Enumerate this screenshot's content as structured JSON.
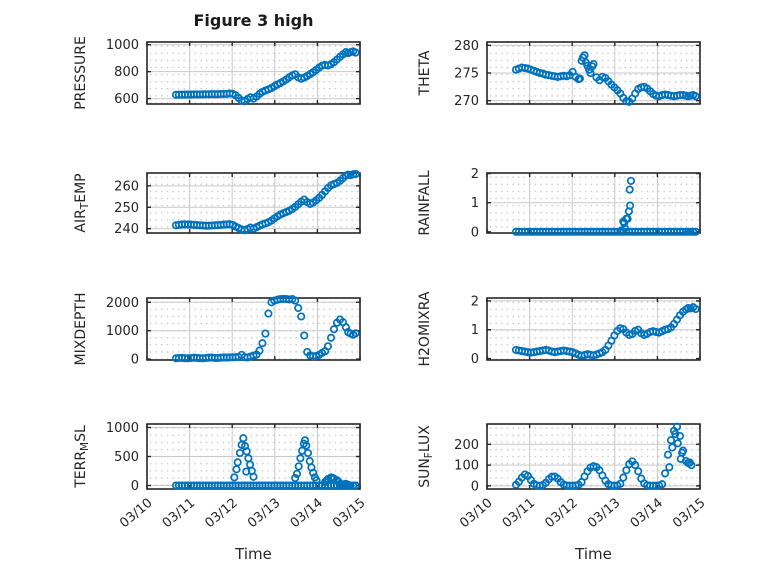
{
  "figure": {
    "title": "Figure 3 high"
  },
  "x_axis": {
    "label": "Time",
    "tick_labels": [
      "03/10",
      "03/11",
      "03/12",
      "03/13",
      "03/14",
      "03/15"
    ],
    "range_days": [
      0,
      5
    ],
    "sample_days": [
      0.68,
      0.75,
      0.82,
      0.89,
      0.96,
      1.03,
      1.1,
      1.17,
      1.24,
      1.31,
      1.38,
      1.45,
      1.52,
      1.59,
      1.66,
      1.73,
      1.8,
      1.87,
      1.94,
      2.01,
      2.08,
      2.15,
      2.22,
      2.29,
      2.36,
      2.43,
      2.5,
      2.57,
      2.64,
      2.71,
      2.78,
      2.85,
      2.92,
      2.99,
      3.06,
      3.13,
      3.2,
      3.27,
      3.34,
      3.41,
      3.48,
      3.55,
      3.62,
      3.69,
      3.76,
      3.83,
      3.9,
      3.97,
      4.04,
      4.11,
      4.18,
      4.25,
      4.32,
      4.39,
      4.46,
      4.53,
      4.6,
      4.67,
      4.72
    ]
  },
  "style": {
    "marker_color": "#0072BD",
    "grid_color": "#c9c9c9",
    "minor_dot_color": "#c5c5c5",
    "axis_color": "#262626",
    "text_color": "#262626"
  },
  "chart_data": [
    {
      "id": "pressure",
      "type": "scatter",
      "ylabel": "PRESSURE",
      "ylabel_parts": [
        {
          "text": "PRESSURE",
          "sub": false
        }
      ],
      "yticks": [
        600,
        800,
        1000
      ],
      "ylim": [
        560,
        1020
      ],
      "y": [
        628,
        629,
        629,
        630,
        630,
        630,
        631,
        631,
        631,
        632,
        632,
        632,
        633,
        633,
        633,
        634,
        634,
        635,
        638,
        636,
        625,
        605,
        585,
        580,
        596,
        610,
        600,
        615,
        635,
        650,
        660,
        668,
        678,
        692,
        705,
        715,
        728,
        742,
        758,
        772,
        780,
        758,
        748,
        756,
        768,
        782,
        795,
        812,
        830,
        845,
        850,
        846,
        855,
        870,
        890,
        910,
        928,
        945,
        938
      ],
      "x_extra": [
        4.78,
        4.84,
        4.9
      ],
      "y_extra": [
        944,
        950,
        941
      ]
    },
    {
      "id": "theta",
      "type": "scatter",
      "ylabel": "THETA",
      "ylabel_parts": [
        {
          "text": "THETA",
          "sub": false
        }
      ],
      "yticks": [
        270,
        275,
        280
      ],
      "ylim": [
        269.4,
        280.6
      ],
      "y": [
        275.6,
        275.8,
        276.0,
        275.9,
        275.8,
        275.6,
        275.4,
        275.2,
        275.0,
        274.9,
        274.7,
        274.6,
        274.5,
        274.4,
        274.3,
        274.4,
        274.5,
        274.4,
        274.6,
        275.2,
        274.3,
        273.9,
        277.2,
        278.2,
        276.3,
        275.0,
        276.6,
        274.2,
        273.7,
        274.3,
        274.1,
        273.5,
        272.9,
        272.4,
        271.9,
        271.3,
        270.5,
        269.9,
        269.8,
        270.4,
        271.3,
        272.1,
        272.4,
        272.5,
        272.2,
        271.7,
        271.2,
        270.9,
        270.8,
        271.0,
        271.1,
        271.0,
        270.9,
        270.8,
        270.9,
        271.0,
        271.0,
        270.9,
        270.8
      ],
      "x_extra": [
        2.18,
        2.25,
        2.32,
        2.4,
        2.47,
        4.78,
        4.84,
        4.9
      ],
      "y_extra": [
        274.0,
        277.8,
        276.9,
        275.6,
        276.2,
        270.9,
        271.0,
        270.8
      ]
    },
    {
      "id": "air_temp",
      "type": "scatter",
      "ylabel": "AIR_TEMP",
      "ylabel_parts": [
        {
          "text": "AIR",
          "sub": false
        },
        {
          "text": "T",
          "sub": true
        },
        {
          "text": "EMP",
          "sub": false
        }
      ],
      "yticks": [
        240,
        250,
        260
      ],
      "ylim": [
        238,
        266
      ],
      "y": [
        241.6,
        241.8,
        242.0,
        242.0,
        242.0,
        241.9,
        241.8,
        241.7,
        241.6,
        241.5,
        241.4,
        241.4,
        241.5,
        241.6,
        241.7,
        241.8,
        241.9,
        242.0,
        242.1,
        241.8,
        241.0,
        240.3,
        239.7,
        239.3,
        239.8,
        240.5,
        240.0,
        240.7,
        241.4,
        242.0,
        242.5,
        243.0,
        243.8,
        244.8,
        245.8,
        246.6,
        247.2,
        247.8,
        248.4,
        249.2,
        250.2,
        251.4,
        252.6,
        253.6,
        252.4,
        251.6,
        252.2,
        253.2,
        254.4,
        255.8,
        257.4,
        259.0,
        260.2,
        260.8,
        261.4,
        262.4,
        263.6,
        264.8,
        265.2
      ],
      "x_extra": [
        4.78,
        4.84,
        4.9
      ],
      "y_extra": [
        265.0,
        265.4,
        265.6
      ]
    },
    {
      "id": "rainfall",
      "type": "scatter",
      "ylabel": "RAINFALL",
      "ylabel_parts": [
        {
          "text": "RAINFALL",
          "sub": false
        }
      ],
      "yticks": [
        0,
        1,
        2
      ],
      "ylim": [
        -0.04,
        2.02
      ],
      "y": [
        0,
        0,
        0,
        0,
        0,
        0,
        0,
        0,
        0,
        0,
        0,
        0,
        0,
        0,
        0,
        0,
        0,
        0,
        0,
        0,
        0,
        0,
        0,
        0,
        0,
        0,
        0,
        0,
        0,
        0,
        0,
        0,
        0,
        0,
        0,
        0,
        0,
        0,
        0,
        0,
        0,
        0,
        0,
        0,
        0,
        0,
        0,
        0,
        0,
        0,
        0,
        0,
        0,
        0,
        0,
        0,
        0,
        0,
        0
      ],
      "x_extra": [
        3.16,
        3.2,
        3.22,
        3.24,
        3.27,
        3.3,
        3.33,
        3.35,
        3.36,
        3.38,
        4.78,
        4.84,
        4.9
      ],
      "y_extra": [
        0.05,
        0.35,
        0.3,
        0.12,
        0.45,
        0.45,
        0.7,
        1.45,
        0.9,
        1.75,
        0,
        0,
        0
      ]
    },
    {
      "id": "mixdepth",
      "type": "scatter",
      "ylabel": "MIXDEPTH",
      "ylabel_parts": [
        {
          "text": "MIXDEPTH",
          "sub": false
        }
      ],
      "yticks": [
        0,
        1000,
        2000
      ],
      "ylim": [
        -30,
        2150
      ],
      "y": [
        30,
        40,
        45,
        35,
        30,
        40,
        50,
        45,
        35,
        30,
        40,
        50,
        55,
        45,
        40,
        50,
        60,
        55,
        60,
        65,
        70,
        75,
        150,
        70,
        60,
        90,
        120,
        160,
        300,
        560,
        900,
        1600,
        2000,
        2060,
        2090,
        2110,
        2120,
        2110,
        2100,
        2110,
        2060,
        1800,
        1500,
        830,
        250,
        130,
        100,
        110,
        150,
        220,
        280,
        450,
        750,
        1050,
        1280,
        1390,
        1300,
        1120,
        950
      ],
      "x_extra": [
        4.78,
        4.84,
        4.9
      ],
      "y_extra": [
        900,
        860,
        910
      ]
    },
    {
      "id": "h2omixra",
      "type": "scatter",
      "ylabel": "H2OMIXRA",
      "ylabel_parts": [
        {
          "text": "H2OMIXRA",
          "sub": false
        }
      ],
      "yticks": [
        0,
        1,
        2
      ],
      "ylim": [
        -0.05,
        2.1
      ],
      "y": [
        0.3,
        0.28,
        0.26,
        0.24,
        0.22,
        0.21,
        0.22,
        0.24,
        0.26,
        0.28,
        0.3,
        0.28,
        0.24,
        0.22,
        0.24,
        0.26,
        0.28,
        0.26,
        0.24,
        0.22,
        0.18,
        0.13,
        0.1,
        0.12,
        0.15,
        0.13,
        0.11,
        0.14,
        0.18,
        0.22,
        0.3,
        0.45,
        0.62,
        0.8,
        0.96,
        1.05,
        1.02,
        0.9,
        0.82,
        0.85,
        0.96,
        1.0,
        0.88,
        0.82,
        0.86,
        0.92,
        0.95,
        0.92,
        0.9,
        0.95,
        1.0,
        1.02,
        1.08,
        1.2,
        1.35,
        1.5,
        1.62,
        1.7,
        1.75
      ],
      "x_extra": [
        4.78,
        4.84,
        4.9
      ],
      "y_extra": [
        1.74,
        1.78,
        1.72
      ]
    },
    {
      "id": "terr_msl",
      "type": "scatter",
      "ylabel": "TERR_MSL",
      "ylabel_parts": [
        {
          "text": "TERR",
          "sub": false
        },
        {
          "text": "M",
          "sub": true
        },
        {
          "text": "SL",
          "sub": false
        }
      ],
      "yticks": [
        0,
        500,
        1000
      ],
      "ylim": [
        -60,
        1060
      ],
      "y": [
        0,
        0,
        0,
        0,
        0,
        0,
        0,
        0,
        0,
        0,
        0,
        0,
        0,
        0,
        0,
        0,
        0,
        0,
        0,
        0,
        0,
        0,
        0,
        0,
        0,
        0,
        0,
        0,
        0,
        0,
        0,
        0,
        0,
        0,
        0,
        0,
        0,
        0,
        0,
        0,
        0,
        0,
        0,
        0,
        0,
        0,
        0,
        0,
        0,
        0,
        0,
        0,
        0,
        0,
        0,
        0,
        0,
        0,
        0
      ],
      "x_extra": [
        2.05,
        2.1,
        2.13,
        2.18,
        2.22,
        2.26,
        2.3,
        2.33,
        2.34,
        2.38,
        2.42,
        2.46,
        2.5,
        3.48,
        3.52,
        3.56,
        3.6,
        3.64,
        3.68,
        3.71,
        3.74,
        3.78,
        3.82,
        3.86,
        3.9,
        3.94,
        3.98,
        4.18,
        4.22,
        4.25,
        4.32,
        4.36,
        4.39,
        4.46,
        4.5,
        4.54,
        4.58,
        4.62,
        4.66,
        4.7,
        4.74,
        4.78,
        4.84,
        4.9
      ],
      "y_extra": [
        140,
        280,
        400,
        560,
        700,
        815,
        680,
        240,
        590,
        470,
        360,
        250,
        150,
        130,
        200,
        330,
        470,
        600,
        720,
        780,
        690,
        560,
        420,
        310,
        220,
        140,
        90,
        60,
        90,
        110,
        140,
        130,
        120,
        90,
        60,
        30,
        15,
        10,
        30,
        20,
        5,
        0,
        0,
        0
      ]
    },
    {
      "id": "sun_flux",
      "type": "scatter",
      "ylabel": "SUN_FLUX",
      "ylabel_parts": [
        {
          "text": "SUN",
          "sub": false
        },
        {
          "text": "F",
          "sub": true
        },
        {
          "text": "LUX",
          "sub": false
        }
      ],
      "yticks": [
        0,
        100,
        200
      ],
      "ylim": [
        -15,
        298
      ],
      "y": [
        5,
        20,
        40,
        55,
        48,
        28,
        10,
        3,
        1,
        4,
        15,
        32,
        44,
        45,
        35,
        18,
        6,
        2,
        1,
        1,
        2,
        5,
        18,
        45,
        70,
        88,
        95,
        90,
        75,
        50,
        25,
        8,
        2,
        1,
        2,
        10,
        40,
        75,
        105,
        118,
        100,
        70,
        35,
        12,
        3,
        1,
        1,
        1,
        2,
        8,
        60,
        150,
        220,
        265,
        285,
        240,
        170,
        120,
        110
      ],
      "x_extra": [
        4.28,
        4.35,
        4.42,
        4.48,
        4.55,
        4.58,
        4.76,
        4.8
      ],
      "y_extra": [
        90,
        185,
        250,
        205,
        130,
        160,
        112,
        100
      ]
    }
  ]
}
